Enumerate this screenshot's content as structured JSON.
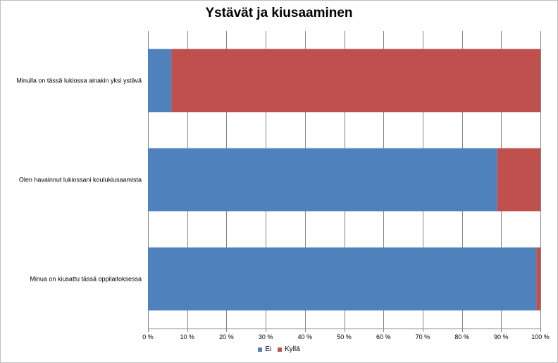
{
  "chart_data": {
    "type": "bar",
    "orientation": "horizontal",
    "stacked": "percent",
    "title": "Ystävät ja kiusaaminen",
    "categories": [
      "Minulla on tässä lukiossa ainakin yksi ystävä",
      "Olen havainnut lukiossani koulukiusaamista",
      "Minua on kiusattu tässä oppilaitoksessa"
    ],
    "series": [
      {
        "name": "Ei",
        "color": "#4f81bd",
        "values": [
          6,
          89,
          99
        ]
      },
      {
        "name": "Kyllä",
        "color": "#c0504d",
        "values": [
          94,
          11,
          1
        ]
      }
    ],
    "xlim": [
      0,
      100
    ],
    "x_ticks": [
      "0 %",
      "10 %",
      "20 %",
      "30 %",
      "40 %",
      "50 %",
      "60 %",
      "70 %",
      "80 %",
      "90 %",
      "100 %"
    ],
    "xlabel": "",
    "ylabel": "",
    "grid": "vertical",
    "legend": "bottom"
  }
}
